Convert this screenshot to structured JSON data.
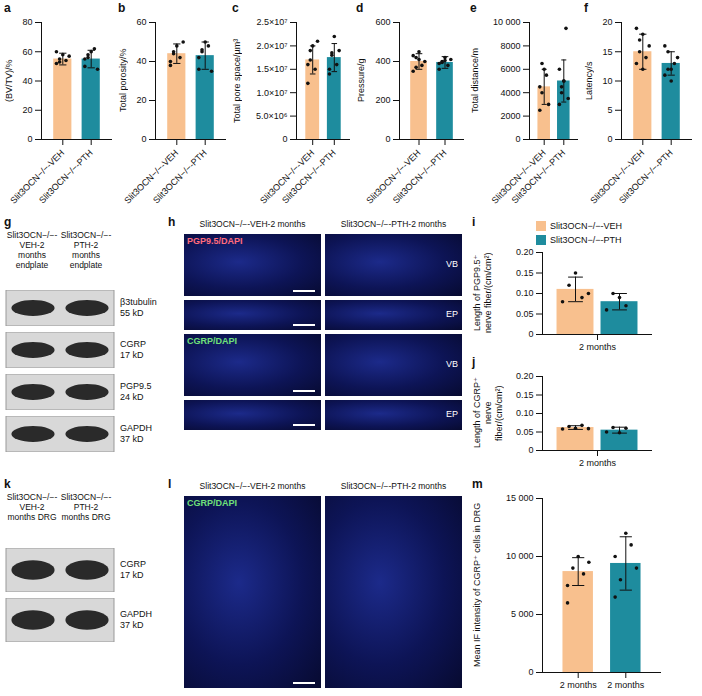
{
  "chart_data": [
    {
      "panel": "a",
      "type": "bar",
      "ylabel": "(BV/TV)/%",
      "categories": [
        "Slit3OCN−/−-VEH",
        "Slit3OCN−/−-PTH"
      ],
      "values": [
        55,
        55
      ],
      "error": [
        4,
        6
      ],
      "points": [
        [
          52,
          55,
          58,
          54,
          57,
          60,
          53
        ],
        [
          50,
          56,
          60,
          62,
          48,
          55,
          58
        ]
      ],
      "colors": [
        "#F8C08E",
        "#1E8C9E"
      ],
      "ylim": [
        0,
        80
      ],
      "yticks": [
        0,
        20,
        40,
        60,
        80
      ]
    },
    {
      "panel": "b",
      "type": "bar",
      "ylabel": "Total porosity/%",
      "categories": [
        "Slit3OCN−/−-VEH",
        "Slit3OCN−/−-PTH"
      ],
      "values": [
        44,
        43
      ],
      "error": [
        5,
        7
      ],
      "points": [
        [
          40,
          45,
          48,
          42,
          50,
          38,
          44
        ],
        [
          36,
          45,
          50,
          48,
          35,
          42,
          46
        ]
      ],
      "colors": [
        "#F8C08E",
        "#1E8C9E"
      ],
      "ylim": [
        0,
        60
      ],
      "yticks": [
        0,
        20,
        40,
        60
      ]
    },
    {
      "panel": "c",
      "type": "bar",
      "ylabel": "Total pore space/µm³",
      "categories": [
        "Slit3OCN−/−-VEH",
        "Slit3OCN−/−-PTH"
      ],
      "values": [
        17000000,
        17500000
      ],
      "error": [
        3000000,
        3000000
      ],
      "points": [
        [
          12000000,
          19000000,
          20000000,
          15000000,
          21000000,
          16000000,
          17000000
        ],
        [
          14000000,
          18000000,
          22000000,
          16000000,
          19000000,
          15000000,
          18500000
        ]
      ],
      "colors": [
        "#F8C08E",
        "#1E8C9E"
      ],
      "ylim": [
        0,
        25000000
      ],
      "yticks": [
        0,
        {
          "value": 5000000,
          "label": "5.0×10⁶"
        },
        {
          "value": 10000000,
          "label": "1.0×10⁷"
        },
        {
          "value": 15000000,
          "label": "1.5×10⁷"
        },
        {
          "value": 20000000,
          "label": "2.0×10⁷"
        },
        {
          "value": 25000000,
          "label": "2.5×10⁷"
        }
      ]
    },
    {
      "panel": "d",
      "type": "bar",
      "ylabel": "Pressure/g",
      "categories": [
        "Slit3OCN−/−-VEH",
        "Slit3OCN−/−-PTH"
      ],
      "values": [
        400,
        395
      ],
      "error": [
        40,
        30
      ],
      "points": [
        [
          350,
          420,
          450,
          380,
          400,
          430,
          370,
          410
        ],
        [
          360,
          400,
          420,
          380,
          410,
          390,
          395,
          405
        ]
      ],
      "colors": [
        "#F8C08E",
        "#1E8C9E"
      ],
      "ylim": [
        0,
        600
      ],
      "yticks": [
        0,
        200,
        400,
        600
      ]
    },
    {
      "panel": "e",
      "type": "bar",
      "ylabel": "Total distance/m",
      "categories": [
        "Slit3OCN−/−-VEH",
        "Slit3OCN−/−-PTH"
      ],
      "values": [
        4500,
        5000
      ],
      "error": [
        1500,
        1800
      ],
      "points": [
        [
          2500,
          4000,
          6000,
          5500,
          3000,
          4500,
          6500
        ],
        [
          3000,
          4500,
          5000,
          9500,
          3500,
          6000,
          4000,
          5000
        ]
      ],
      "colors": [
        "#F8C08E",
        "#1E8C9E"
      ],
      "ylim": [
        0,
        10000
      ],
      "yticks": [
        0,
        2000,
        4000,
        6000,
        8000,
        {
          "value": 10000,
          "label": "10 000"
        }
      ]
    },
    {
      "panel": "f",
      "type": "bar",
      "ylabel": "Latency/s",
      "categories": [
        "Slit3OCN−/−-VEH",
        "Slit3OCN−/−-PTH"
      ],
      "values": [
        15,
        13
      ],
      "error": [
        3,
        2
      ],
      "points": [
        [
          19,
          17,
          12,
          14,
          16,
          13,
          15,
          18
        ],
        [
          16,
          12,
          10,
          13,
          14,
          11,
          15,
          12
        ]
      ],
      "colors": [
        "#F8C08E",
        "#1E8C9E"
      ],
      "ylim": [
        0,
        20
      ],
      "yticks": [
        0,
        5,
        10,
        15,
        20
      ]
    },
    {
      "panel": "i",
      "type": "bar",
      "ylabel": "Length of PGP9.5⁺ nerve fiber/(cm/cm²)",
      "categories": [
        "2 months"
      ],
      "legend": "top-right",
      "series": [
        {
          "name": "Slit3OCN−/−-VEH",
          "color": "#F8C08E",
          "values": [
            0.11
          ],
          "error": [
            0.03
          ],
          "points": [
            [
              0.08,
              0.12,
              0.15,
              0.09,
              0.1
            ]
          ]
        },
        {
          "name": "Slit3OCN−/−-PTH",
          "color": "#1E8C9E",
          "values": [
            0.08
          ],
          "error": [
            0.02
          ],
          "points": [
            [
              0.06,
              0.1,
              0.09,
              0.07
            ]
          ]
        }
      ],
      "ylim": [
        0,
        0.2
      ],
      "yticks": [
        0,
        0.05,
        {
          "value": 0.1,
          "label": "0.10"
        },
        0.15,
        {
          "value": 0.2,
          "label": "0.20"
        }
      ]
    },
    {
      "panel": "j",
      "type": "bar",
      "ylabel": "Length of CGRP⁺ nerve fiber/(cm/cm²)",
      "categories": [
        "2 months"
      ],
      "series": [
        {
          "color": "#F8C08E",
          "values": [
            0.062
          ],
          "error": [
            0.005
          ],
          "points": [
            [
              0.058,
              0.065,
              0.06,
              0.068,
              0.059
            ]
          ]
        },
        {
          "color": "#1E8C9E",
          "values": [
            0.055
          ],
          "error": [
            0.008
          ],
          "points": [
            [
              0.05,
              0.062,
              0.048,
              0.06
            ]
          ]
        }
      ],
      "ylim": [
        0,
        0.2
      ],
      "yticks": [
        0,
        0.05,
        {
          "value": 0.1,
          "label": "0.10"
        },
        0.15,
        {
          "value": 0.2,
          "label": "0.20"
        }
      ]
    },
    {
      "panel": "m",
      "type": "bar",
      "ylabel": "Mean IF intensity of CGRP⁺ cells in DRG",
      "categories": [
        "2 months",
        "2 months"
      ],
      "values": [
        8700,
        9400
      ],
      "error": [
        1200,
        2300
      ],
      "points": [
        [
          6000,
          9000,
          10000,
          8500,
          9500,
          7500
        ],
        [
          6500,
          8000,
          12000,
          11000,
          9000,
          10000
        ]
      ],
      "colors": [
        "#F8C08E",
        "#1E8C9E"
      ],
      "ylim": [
        0,
        15000
      ],
      "yticks": [
        0,
        {
          "value": 5000,
          "label": "5 000"
        },
        {
          "value": 10000,
          "label": "10 000"
        },
        {
          "value": 15000,
          "label": "15 000"
        }
      ]
    }
  ],
  "blots": [
    {
      "panel": "g",
      "columns": [
        "Slit3OCN−/−-VEH-2 months endplate",
        "Slit3OCN−/−-PTH-2 months endplate"
      ],
      "bands": [
        {
          "name": "β3tubulin",
          "size": "55 kD"
        },
        {
          "name": "CGRP",
          "size": "17 kD"
        },
        {
          "name": "PGP9.5",
          "size": "24 kD"
        },
        {
          "name": "GAPDH",
          "size": "37 kD"
        }
      ]
    },
    {
      "panel": "k",
      "columns": [
        "Slit3OCN−/−-VEH-2 months DRG",
        "Slit3OCN−/−-PTH-2 months DRG"
      ],
      "bands": [
        {
          "name": "CGRP",
          "size": "17 kD"
        },
        {
          "name": "GAPDH",
          "size": "37 kD"
        }
      ]
    }
  ],
  "images": [
    {
      "panel": "h",
      "columns": [
        "Slit3OCN−/−-VEH-2 months",
        "Slit3OCN−/−-PTH-2 months"
      ],
      "rows": [
        {
          "label": "PGP9.5/DAPI",
          "region": "VB"
        },
        {
          "region": "EP"
        },
        {
          "label": "CGRP/DAPI",
          "region": "VB"
        },
        {
          "region": "EP"
        }
      ]
    },
    {
      "panel": "l",
      "columns": [
        "Slit3OCN−/−-VEH-2 months",
        "Slit3OCN−/−-PTH-2 months"
      ],
      "rows": [
        {
          "label": "CGRP/DAPI"
        }
      ]
    }
  ]
}
